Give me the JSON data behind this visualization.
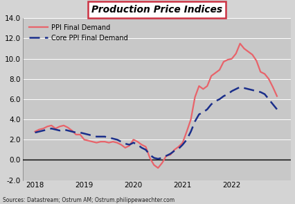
{
  "title": "Production Price Indices",
  "source_text": "Sources: Datastream; Ostrum AM; Ostrum.philippewaechter.com",
  "fig_bg_color": "#d4d4d4",
  "plot_bg_color": "#c8c8c8",
  "title_box_edge_color": "#cc3344",
  "ylim": [
    -2.0,
    14.0
  ],
  "yticks": [
    -2.0,
    0.0,
    2.0,
    4.0,
    6.0,
    8.0,
    10.0,
    12.0,
    14.0
  ],
  "xtick_positions": [
    2018,
    2019,
    2020,
    2021,
    2022
  ],
  "xtick_labels": [
    "2018",
    "2019",
    "2020",
    "2021",
    "2022"
  ],
  "xlim": [
    2017.75,
    2023.2
  ],
  "legend": [
    {
      "label": "PPI Final Demand",
      "color": "#e8636a",
      "linestyle": "solid"
    },
    {
      "label": "Core PPI Final Demand",
      "color": "#1a2e8a",
      "linestyle": "dashed"
    }
  ],
  "ppi": {
    "x": [
      2018.0,
      2018.083,
      2018.167,
      2018.25,
      2018.333,
      2018.417,
      2018.5,
      2018.583,
      2018.667,
      2018.75,
      2018.833,
      2018.917,
      2019.0,
      2019.083,
      2019.167,
      2019.25,
      2019.333,
      2019.417,
      2019.5,
      2019.583,
      2019.667,
      2019.75,
      2019.833,
      2019.917,
      2020.0,
      2020.083,
      2020.167,
      2020.25,
      2020.333,
      2020.417,
      2020.5,
      2020.583,
      2020.667,
      2020.75,
      2020.833,
      2020.917,
      2021.0,
      2021.083,
      2021.167,
      2021.25,
      2021.333,
      2021.417,
      2021.5,
      2021.583,
      2021.667,
      2021.75,
      2021.833,
      2021.917,
      2022.0,
      2022.083,
      2022.167,
      2022.25,
      2022.333,
      2022.417,
      2022.5,
      2022.583,
      2022.667,
      2022.75,
      2022.833,
      2022.917
    ],
    "y": [
      2.8,
      3.0,
      3.1,
      3.3,
      3.4,
      3.1,
      3.3,
      3.4,
      3.2,
      2.9,
      2.5,
      2.5,
      2.0,
      1.9,
      1.8,
      1.7,
      1.8,
      1.8,
      1.7,
      1.8,
      1.7,
      1.5,
      1.2,
      1.4,
      2.0,
      1.8,
      1.5,
      1.3,
      0.2,
      -0.5,
      -0.8,
      -0.3,
      0.4,
      0.5,
      1.0,
      1.3,
      1.7,
      2.8,
      4.0,
      6.2,
      7.3,
      7.0,
      7.3,
      8.3,
      8.6,
      8.9,
      9.7,
      9.9,
      10.0,
      10.5,
      11.5,
      11.0,
      10.7,
      10.4,
      9.8,
      8.7,
      8.5,
      8.0,
      7.2,
      6.3
    ]
  },
  "core_ppi": {
    "x": [
      2018.0,
      2018.083,
      2018.167,
      2018.25,
      2018.333,
      2018.417,
      2018.5,
      2018.583,
      2018.667,
      2018.75,
      2018.833,
      2018.917,
      2019.0,
      2019.083,
      2019.167,
      2019.25,
      2019.333,
      2019.417,
      2019.5,
      2019.583,
      2019.667,
      2019.75,
      2019.833,
      2019.917,
      2020.0,
      2020.083,
      2020.167,
      2020.25,
      2020.333,
      2020.417,
      2020.5,
      2020.583,
      2020.667,
      2020.75,
      2020.833,
      2020.917,
      2021.0,
      2021.083,
      2021.167,
      2021.25,
      2021.333,
      2021.417,
      2021.5,
      2021.583,
      2021.667,
      2021.75,
      2021.833,
      2021.917,
      2022.0,
      2022.083,
      2022.167,
      2022.25,
      2022.333,
      2022.417,
      2022.5,
      2022.583,
      2022.667,
      2022.75,
      2022.833,
      2022.917
    ],
    "y": [
      2.7,
      2.8,
      2.9,
      3.0,
      3.1,
      3.0,
      2.9,
      3.0,
      2.9,
      2.8,
      2.7,
      2.7,
      2.6,
      2.5,
      2.4,
      2.3,
      2.3,
      2.3,
      2.2,
      2.1,
      2.0,
      1.8,
      1.6,
      1.5,
      1.7,
      1.5,
      1.2,
      1.0,
      0.5,
      0.2,
      0.1,
      0.2,
      0.4,
      0.6,
      0.9,
      1.1,
      1.5,
      2.0,
      2.8,
      3.8,
      4.5,
      4.7,
      5.0,
      5.5,
      5.8,
      6.0,
      6.3,
      6.5,
      6.8,
      7.0,
      7.2,
      7.1,
      7.0,
      6.9,
      6.8,
      6.7,
      6.5,
      6.0,
      5.5,
      5.0
    ]
  }
}
